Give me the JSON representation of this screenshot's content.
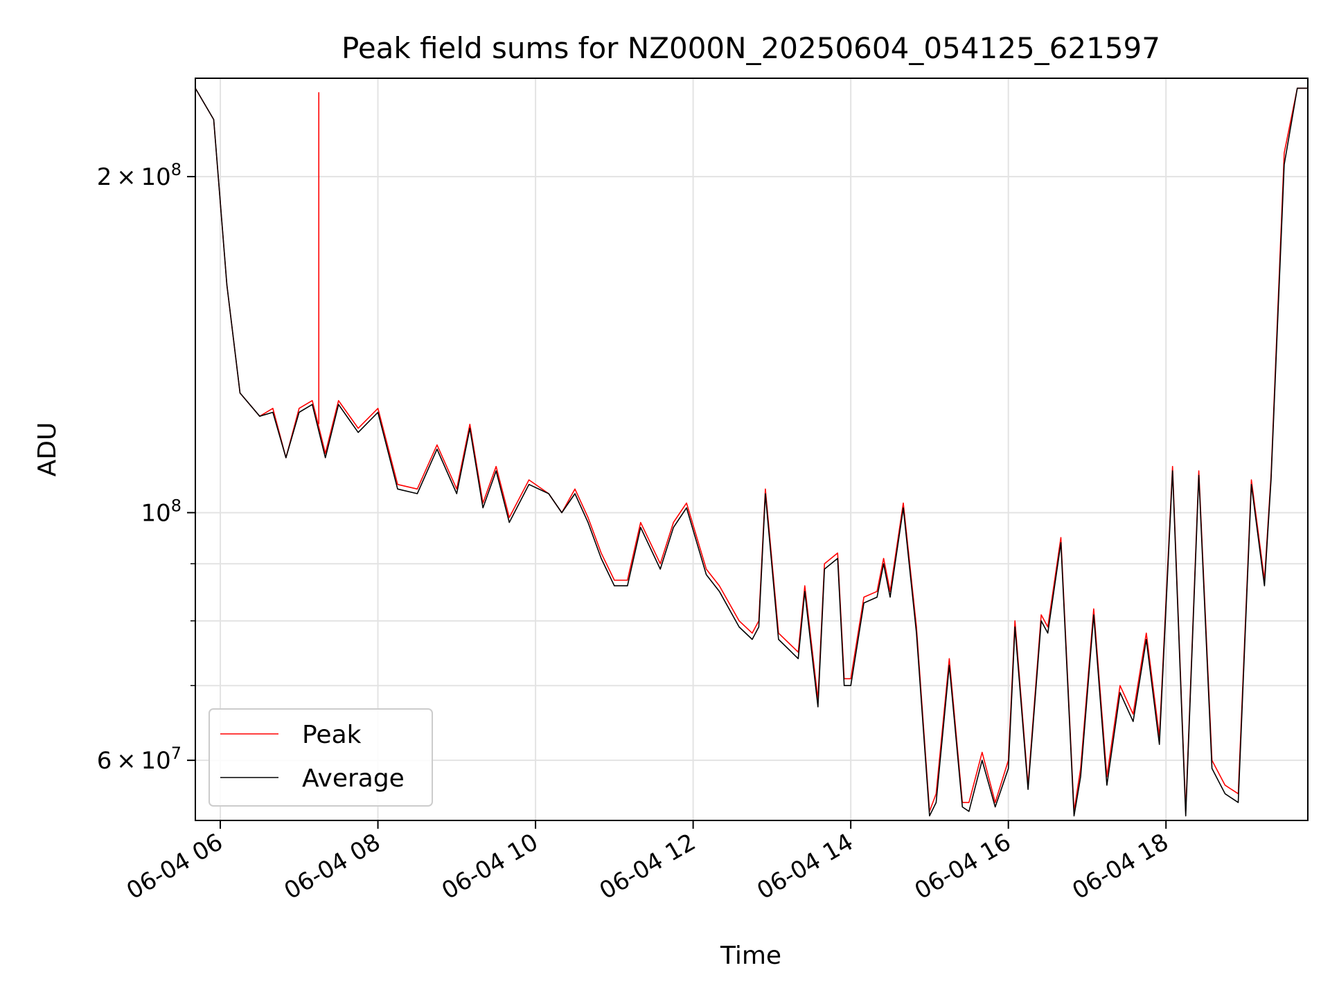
{
  "chart_data": {
    "type": "line",
    "title": "Peak field sums for NZ000N_20250604_054125_621597",
    "xlabel": "Time",
    "ylabel": "ADU",
    "yscale": "log",
    "xlim": [
      "2025-06-04 05:41",
      "2025-06-04 19:48"
    ],
    "ylim": [
      53000000,
      245000000
    ],
    "grid": true,
    "legend_position": "lower-left",
    "x_ticks": [
      {
        "value": "2025-06-04 06:00",
        "label": "06-04 06"
      },
      {
        "value": "2025-06-04 08:00",
        "label": "06-04 08"
      },
      {
        "value": "2025-06-04 10:00",
        "label": "06-04 10"
      },
      {
        "value": "2025-06-04 12:00",
        "label": "06-04 12"
      },
      {
        "value": "2025-06-04 14:00",
        "label": "06-04 14"
      },
      {
        "value": "2025-06-04 16:00",
        "label": "06-04 16"
      },
      {
        "value": "2025-06-04 18:00",
        "label": "06-04 18"
      }
    ],
    "y_ticks": [
      {
        "value": 200000000,
        "mant": "2",
        "exp": "8"
      },
      {
        "value": 100000000,
        "mant": "",
        "exp": "8"
      },
      {
        "value": 60000000,
        "mant": "6",
        "exp": "7"
      }
    ],
    "y_minor_ticks": [
      70000000,
      80000000,
      90000000
    ],
    "series": [
      {
        "name": "Peak",
        "color": "#ff0000",
        "spike": {
          "time": "2025-06-04 07:15",
          "value": 238000000
        },
        "x": [
          "2025-06-04 05:41",
          "2025-06-04 05:55",
          "2025-06-04 06:05",
          "2025-06-04 06:15",
          "2025-06-04 06:30",
          "2025-06-04 06:40",
          "2025-06-04 06:50",
          "2025-06-04 07:00",
          "2025-06-04 07:10",
          "2025-06-04 07:20",
          "2025-06-04 07:30",
          "2025-06-04 07:45",
          "2025-06-04 08:00",
          "2025-06-04 08:15",
          "2025-06-04 08:30",
          "2025-06-04 08:45",
          "2025-06-04 09:00",
          "2025-06-04 09:10",
          "2025-06-04 09:20",
          "2025-06-04 09:30",
          "2025-06-04 09:40",
          "2025-06-04 09:55",
          "2025-06-04 10:10",
          "2025-06-04 10:20",
          "2025-06-04 10:30",
          "2025-06-04 10:40",
          "2025-06-04 10:50",
          "2025-06-04 11:00",
          "2025-06-04 11:10",
          "2025-06-04 11:20",
          "2025-06-04 11:35",
          "2025-06-04 11:45",
          "2025-06-04 11:50",
          "2025-06-04 11:55",
          "2025-06-04 12:10",
          "2025-06-04 12:20",
          "2025-06-04 12:35",
          "2025-06-04 12:45",
          "2025-06-04 12:50",
          "2025-06-04 12:55",
          "2025-06-04 13:05",
          "2025-06-04 13:20",
          "2025-06-04 13:25",
          "2025-06-04 13:35",
          "2025-06-04 13:40",
          "2025-06-04 13:50",
          "2025-06-04 13:55",
          "2025-06-04 14:00",
          "2025-06-04 14:10",
          "2025-06-04 14:20",
          "2025-06-04 14:25",
          "2025-06-04 14:30",
          "2025-06-04 14:40",
          "2025-06-04 14:50",
          "2025-06-04 15:00",
          "2025-06-04 15:05",
          "2025-06-04 15:15",
          "2025-06-04 15:25",
          "2025-06-04 15:30",
          "2025-06-04 15:40",
          "2025-06-04 15:50",
          "2025-06-04 16:00",
          "2025-06-04 16:05",
          "2025-06-04 16:15",
          "2025-06-04 16:25",
          "2025-06-04 16:30",
          "2025-06-04 16:40",
          "2025-06-04 16:50",
          "2025-06-04 16:55",
          "2025-06-04 17:05",
          "2025-06-04 17:15",
          "2025-06-04 17:25",
          "2025-06-04 17:35",
          "2025-06-04 17:45",
          "2025-06-04 17:55",
          "2025-06-04 18:05",
          "2025-06-04 18:15",
          "2025-06-04 18:25",
          "2025-06-04 18:35",
          "2025-06-04 18:45",
          "2025-06-04 18:55",
          "2025-06-04 19:05",
          "2025-06-04 19:15",
          "2025-06-04 19:20",
          "2025-06-04 19:30",
          "2025-06-04 19:40",
          "2025-06-04 19:48"
        ],
        "y": [
          240000000,
          225000000,
          160000000,
          128000000,
          122000000,
          124000000,
          112000000,
          124000000,
          126000000,
          113000000,
          126000000,
          119000000,
          124000000,
          106000000,
          105000000,
          115000000,
          105000000,
          120000000,
          102000000,
          110000000,
          99000000,
          107000000,
          104000000,
          100000000,
          105000000,
          99000000,
          92000000,
          87000000,
          87000000,
          98000000,
          90000000,
          98000000,
          100000000,
          102000000,
          89000000,
          86000000,
          80000000,
          78000000,
          80000000,
          105000000,
          78000000,
          75000000,
          86000000,
          68000000,
          90000000,
          92000000,
          71000000,
          71000000,
          84000000,
          85000000,
          91000000,
          85000000,
          102000000,
          79000000,
          54000000,
          56000000,
          74000000,
          55000000,
          55000000,
          61000000,
          55000000,
          60000000,
          80000000,
          57000000,
          81000000,
          79000000,
          95000000,
          54000000,
          59000000,
          82000000,
          58000000,
          70000000,
          66000000,
          78000000,
          63000000,
          110000000,
          54000000,
          109000000,
          60000000,
          57000000,
          56000000,
          107000000,
          87000000,
          108000000,
          210000000,
          240000000,
          240000000
        ]
      },
      {
        "name": "Average",
        "color": "#000000",
        "x": [
          "2025-06-04 05:41",
          "2025-06-04 05:55",
          "2025-06-04 06:05",
          "2025-06-04 06:15",
          "2025-06-04 06:30",
          "2025-06-04 06:40",
          "2025-06-04 06:50",
          "2025-06-04 07:00",
          "2025-06-04 07:10",
          "2025-06-04 07:20",
          "2025-06-04 07:30",
          "2025-06-04 07:45",
          "2025-06-04 08:00",
          "2025-06-04 08:15",
          "2025-06-04 08:30",
          "2025-06-04 08:45",
          "2025-06-04 09:00",
          "2025-06-04 09:10",
          "2025-06-04 09:20",
          "2025-06-04 09:30",
          "2025-06-04 09:40",
          "2025-06-04 09:55",
          "2025-06-04 10:10",
          "2025-06-04 10:20",
          "2025-06-04 10:30",
          "2025-06-04 10:40",
          "2025-06-04 10:50",
          "2025-06-04 11:00",
          "2025-06-04 11:10",
          "2025-06-04 11:20",
          "2025-06-04 11:35",
          "2025-06-04 11:45",
          "2025-06-04 11:50",
          "2025-06-04 11:55",
          "2025-06-04 12:10",
          "2025-06-04 12:20",
          "2025-06-04 12:35",
          "2025-06-04 12:45",
          "2025-06-04 12:50",
          "2025-06-04 12:55",
          "2025-06-04 13:05",
          "2025-06-04 13:20",
          "2025-06-04 13:25",
          "2025-06-04 13:35",
          "2025-06-04 13:40",
          "2025-06-04 13:50",
          "2025-06-04 13:55",
          "2025-06-04 14:00",
          "2025-06-04 14:10",
          "2025-06-04 14:20",
          "2025-06-04 14:25",
          "2025-06-04 14:30",
          "2025-06-04 14:40",
          "2025-06-04 14:50",
          "2025-06-04 15:00",
          "2025-06-04 15:05",
          "2025-06-04 15:15",
          "2025-06-04 15:25",
          "2025-06-04 15:30",
          "2025-06-04 15:40",
          "2025-06-04 15:50",
          "2025-06-04 16:00",
          "2025-06-04 16:05",
          "2025-06-04 16:15",
          "2025-06-04 16:25",
          "2025-06-04 16:30",
          "2025-06-04 16:40",
          "2025-06-04 16:50",
          "2025-06-04 16:55",
          "2025-06-04 17:05",
          "2025-06-04 17:15",
          "2025-06-04 17:25",
          "2025-06-04 17:35",
          "2025-06-04 17:45",
          "2025-06-04 17:55",
          "2025-06-04 18:05",
          "2025-06-04 18:15",
          "2025-06-04 18:25",
          "2025-06-04 18:35",
          "2025-06-04 18:45",
          "2025-06-04 18:55",
          "2025-06-04 19:05",
          "2025-06-04 19:15",
          "2025-06-04 19:20",
          "2025-06-04 19:30",
          "2025-06-04 19:40",
          "2025-06-04 19:48"
        ],
        "y": [
          240000000,
          225000000,
          160000000,
          128000000,
          122000000,
          123000000,
          112000000,
          123000000,
          125000000,
          112000000,
          125000000,
          118000000,
          123000000,
          105000000,
          104000000,
          114000000,
          104000000,
          119000000,
          101000000,
          109000000,
          98000000,
          106000000,
          104000000,
          100000000,
          104000000,
          98000000,
          91000000,
          86000000,
          86000000,
          97000000,
          89000000,
          97000000,
          99000000,
          101000000,
          88000000,
          85000000,
          79000000,
          77000000,
          79000000,
          104000000,
          77000000,
          74000000,
          85000000,
          67000000,
          89000000,
          91000000,
          70000000,
          70000000,
          83000000,
          84000000,
          90000000,
          84000000,
          101000000,
          78000000,
          53500000,
          55000000,
          73000000,
          54500000,
          54000000,
          60000000,
          54500000,
          59000000,
          79000000,
          56500000,
          80000000,
          78000000,
          94000000,
          53500000,
          58000000,
          81000000,
          57000000,
          69000000,
          65000000,
          77000000,
          62000000,
          109000000,
          53500000,
          108000000,
          59000000,
          56000000,
          55000000,
          106000000,
          86000000,
          107000000,
          205000000,
          240000000,
          240000000
        ]
      }
    ]
  }
}
